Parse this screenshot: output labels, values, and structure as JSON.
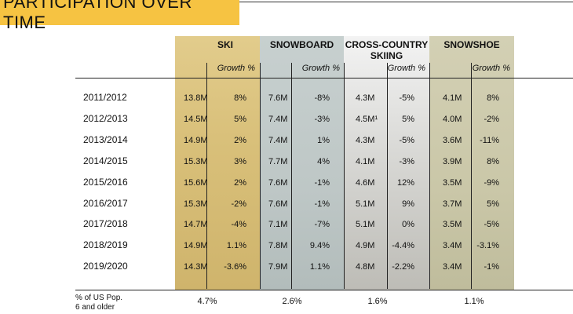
{
  "title": "PARTICIPATION OVER TIME",
  "colors": {
    "title_bg": "#f6c342",
    "ski": "#dcc47e",
    "snowboard": "#c2cbca",
    "cross_country": "#e6e6e3",
    "snowshoe": "#cdcaac"
  },
  "headers": {
    "ski": "SKI",
    "snowboard": "SNOWBOARD",
    "cross_country_1": "CROSS-COUNTRY",
    "cross_country_2": "SKIING",
    "snowshoe": "SNOWSHOE",
    "growth": "Growth %"
  },
  "rows": [
    {
      "season": "2011/2012",
      "ski": "13.8M",
      "ski_g": "8%",
      "sb": "7.6M",
      "sb_g": "-8%",
      "xc": "4.3M",
      "xc_g": "-5%",
      "ss": "4.1M",
      "ss_g": "8%"
    },
    {
      "season": "2012/2013",
      "ski": "14.5M",
      "ski_g": "5%",
      "sb": "7.4M",
      "sb_g": "-3%",
      "xc": "4.5M¹",
      "xc_g": "5%",
      "ss": "4.0M",
      "ss_g": "-2%"
    },
    {
      "season": "2013/2014",
      "ski": "14.9M",
      "ski_g": "2%",
      "sb": "7.4M",
      "sb_g": "1%",
      "xc": "4.3M",
      "xc_g": "-5%",
      "ss": "3.6M",
      "ss_g": "-11%"
    },
    {
      "season": "2014/2015",
      "ski": "15.3M",
      "ski_g": "3%",
      "sb": "7.7M",
      "sb_g": "4%",
      "xc": "4.1M",
      "xc_g": "-3%",
      "ss": "3.9M",
      "ss_g": "8%"
    },
    {
      "season": "2015/2016",
      "ski": "15.6M",
      "ski_g": "2%",
      "sb": "7.6M",
      "sb_g": "-1%",
      "xc": "4.6M",
      "xc_g": "12%",
      "ss": "3.5M",
      "ss_g": "-9%"
    },
    {
      "season": "2016/2017",
      "ski": "15.3M",
      "ski_g": "-2%",
      "sb": "7.6M",
      "sb_g": "-1%",
      "xc": "5.1M",
      "xc_g": "9%",
      "ss": "3.7M",
      "ss_g": "5%"
    },
    {
      "season": "2017/2018",
      "ski": "14.7M",
      "ski_g": "-4%",
      "sb": "7.1M",
      "sb_g": "-7%",
      "xc": "5.1M",
      "xc_g": "0%",
      "ss": "3.5M",
      "ss_g": "-5%"
    },
    {
      "season": "2018/2019",
      "ski": "14.9M",
      "ski_g": "1.1%",
      "sb": "7.8M",
      "sb_g": "9.4%",
      "xc": "4.9M",
      "xc_g": "-4.4%",
      "ss": "3.4M",
      "ss_g": "-3.1%"
    },
    {
      "season": "2019/2020",
      "ski": "14.3M",
      "ski_g": "-3.6%",
      "sb": "7.9M",
      "sb_g": "1.1%",
      "xc": "4.8M",
      "xc_g": "-2.2%",
      "ss": "3.4M",
      "ss_g": "-1%"
    }
  ],
  "footer": {
    "label_1": "% of US Pop.",
    "label_2": "6 and older",
    "ski": "4.7%",
    "snowboard": "2.6%",
    "cross_country": "1.6%",
    "snowshoe": "1.1%"
  }
}
